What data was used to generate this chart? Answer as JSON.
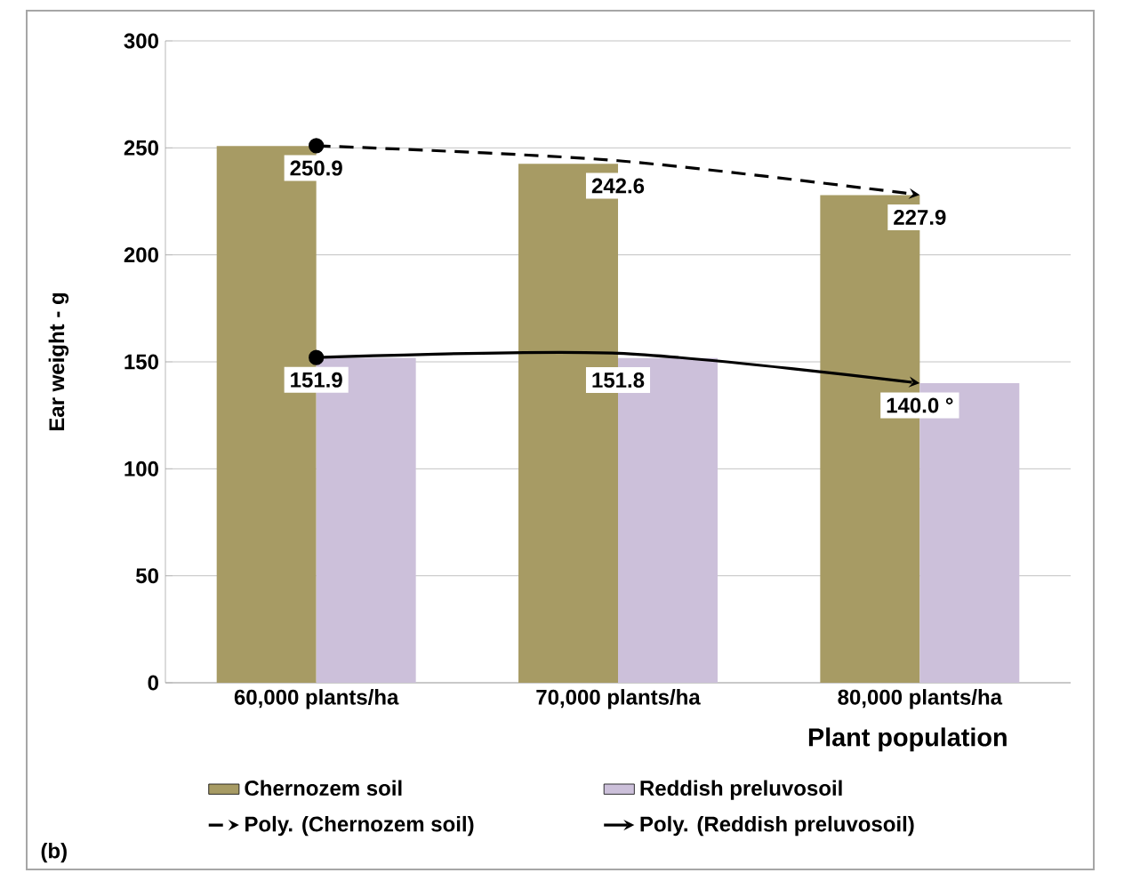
{
  "chart_data": {
    "type": "bar",
    "categories": [
      "60,000 plants/ha",
      "70,000 plants/ha",
      "80,000 plants/ha"
    ],
    "series": [
      {
        "name": "Chernozem soil",
        "color": "#a79b64",
        "values": [
          250.9,
          242.6,
          227.9
        ],
        "value_labels": [
          "250.9",
          "242.6",
          "227.9"
        ]
      },
      {
        "name": "Reddish preluvosoil",
        "color": "#ccc0da",
        "values": [
          151.9,
          151.8,
          140.0
        ],
        "value_labels": [
          "151.9",
          "151.8",
          "140.0 °"
        ]
      },
      {
        "name": "Poly. (Chernozem soil)",
        "type": "line",
        "color": "#000000",
        "line_style": "dashed",
        "marker": "circle",
        "values": [
          251,
          244,
          228
        ]
      },
      {
        "name": "Poly. (Reddish preluvosoil)",
        "type": "line",
        "color": "#000000",
        "line_style": "solid",
        "marker": "circle",
        "values": [
          152,
          154,
          140
        ]
      }
    ],
    "xlabel": "Plant population",
    "ylabel": "Ear weight - g",
    "ylim": [
      0,
      300
    ],
    "yticks": [
      0,
      50,
      100,
      150,
      200,
      250,
      300
    ],
    "grid": "y",
    "legend": "bottom",
    "annotations": [
      "(b)"
    ]
  }
}
